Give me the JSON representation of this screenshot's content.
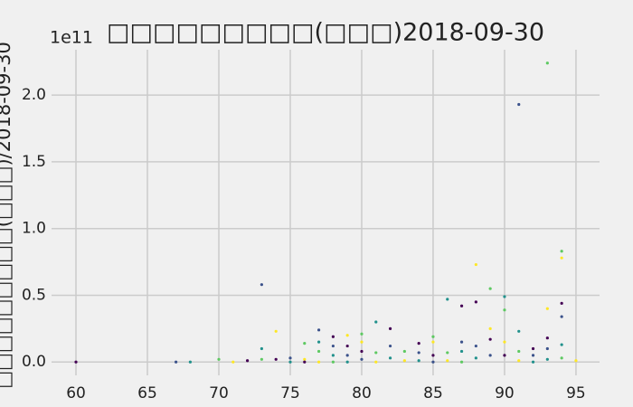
{
  "chart_data": {
    "type": "scatter",
    "title": "□□□□□□□□□(□□□)2018-09-30",
    "y_label": "□□□□□□□□□(□□□)/2018-09-30",
    "y_offset_label": "1e11",
    "xlim": [
      58.29,
      96.65
    ],
    "ylim": [
      -0.1,
      2.34
    ],
    "xticks": [
      60,
      65,
      70,
      75,
      80,
      85,
      90,
      95
    ],
    "yticks": [
      {
        "value": 0,
        "label": "0.0"
      },
      0.5,
      {
        "value": 1,
        "label": "1.0"
      },
      1.5,
      {
        "value": 2,
        "label": "2.0"
      }
    ],
    "grid": true,
    "colors": [
      "#440154",
      "#3b528b",
      "#21918c",
      "#5ec962",
      "#fde725"
    ],
    "x": [
      60,
      67,
      68,
      70,
      71,
      72,
      73,
      73,
      73,
      74,
      74,
      75,
      75,
      76,
      76,
      76,
      77,
      77,
      77,
      77,
      78,
      78,
      78,
      78,
      79,
      79,
      79,
      79,
      80,
      80,
      80,
      80,
      81,
      81,
      81,
      82,
      82,
      82,
      83,
      83,
      84,
      84,
      84,
      85,
      85,
      85,
      85,
      86,
      86,
      86,
      87,
      87,
      87,
      87,
      88,
      88,
      88,
      88,
      89,
      89,
      89,
      89,
      90,
      90,
      90,
      90,
      91,
      91,
      91,
      91,
      92,
      92,
      92,
      93,
      93,
      93,
      93,
      93,
      94,
      94,
      94,
      94,
      94,
      94,
      95
    ],
    "y": [
      0,
      0,
      0,
      0.02,
      0,
      0.01,
      0.58,
      0.1,
      0.02,
      0.23,
      0.02,
      0.03,
      0,
      0.14,
      0.02,
      0,
      0.24,
      0.15,
      0.08,
      0,
      0.19,
      0.12,
      0.05,
      0,
      0.2,
      0.12,
      0.05,
      0,
      0.21,
      0.15,
      0.08,
      0.02,
      0.3,
      0.07,
      0,
      0.25,
      0.12,
      0.03,
      0.08,
      0.01,
      0.14,
      0.07,
      0.01,
      0.19,
      0.15,
      0.05,
      0,
      0.47,
      0.07,
      0.01,
      0.42,
      0.15,
      0.08,
      0,
      0.73,
      0.45,
      0.12,
      0.03,
      0.55,
      0.25,
      0.17,
      0.05,
      0.49,
      0.39,
      0.15,
      0.05,
      1.93,
      0.23,
      0.08,
      0.01,
      0.1,
      0.05,
      0,
      2.24,
      0.4,
      0.18,
      0.1,
      0.02,
      0.83,
      0.78,
      0.44,
      0.34,
      0.13,
      0.03,
      0.01
    ]
  }
}
